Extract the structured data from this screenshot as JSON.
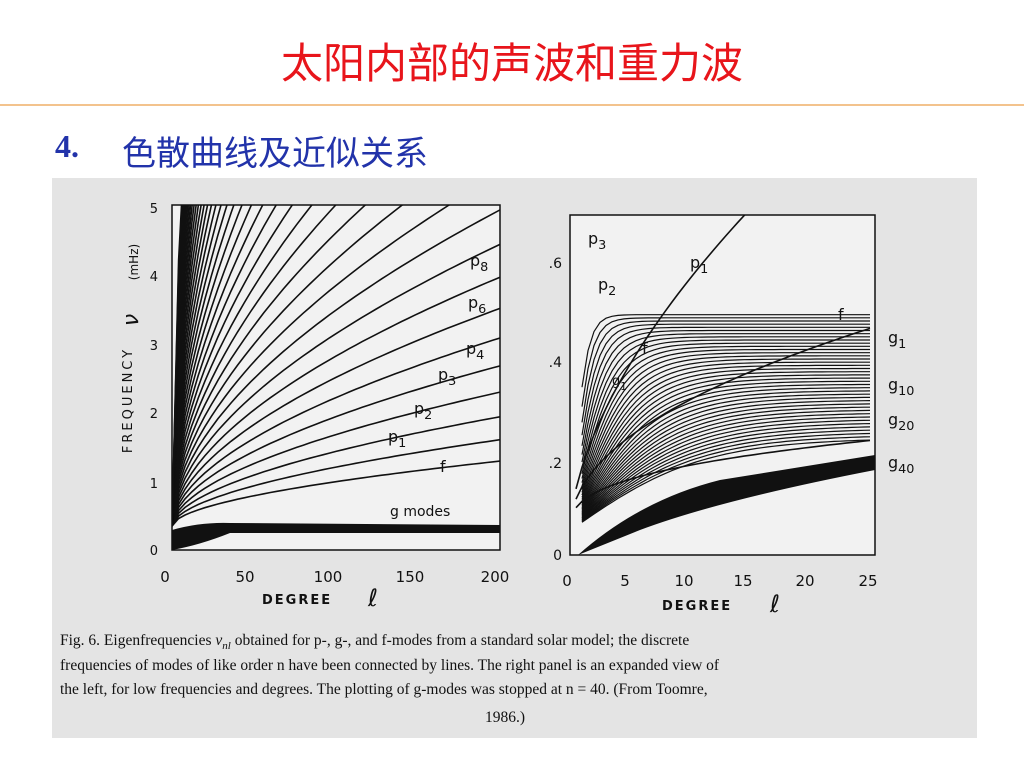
{
  "header": {
    "title": "太阳内部的声波和重力波"
  },
  "section": {
    "number": "4.",
    "title": "色散曲线及近似关系"
  },
  "figure": {
    "left_panel": {
      "y_axis": {
        "label": "FREQUENCY",
        "symbol": "ν",
        "unit": "(mHz)",
        "ticks": [
          "5",
          "4",
          "3",
          "2",
          "1",
          "0"
        ]
      },
      "x_axis": {
        "label": "DEGREE",
        "symbol": "ℓ",
        "ticks": [
          "0",
          "50",
          "100",
          "150",
          "200"
        ]
      },
      "curve_labels": [
        {
          "letter": "p",
          "sub": "8"
        },
        {
          "letter": "p",
          "sub": "6"
        },
        {
          "letter": "p",
          "sub": "4"
        },
        {
          "letter": "p",
          "sub": "3"
        },
        {
          "letter": "p",
          "sub": "2"
        },
        {
          "letter": "p",
          "sub": "1"
        },
        {
          "letter": "f"
        }
      ],
      "band_label": "g modes"
    },
    "right_panel": {
      "y_axis": {
        "ticks": [
          ".6",
          ".4",
          ".2",
          "0"
        ]
      },
      "x_axis": {
        "label": "DEGREE",
        "symbol": "ℓ",
        "ticks": [
          "0",
          "5",
          "10",
          "15",
          "20",
          "25"
        ]
      },
      "curve_labels": [
        {
          "letter": "p",
          "sub": "3"
        },
        {
          "letter": "p",
          "sub": "2"
        },
        {
          "letter": "p",
          "sub": "1"
        },
        {
          "letter": "f"
        },
        {
          "letter": "f"
        },
        {
          "letter": "g",
          "sub": "1"
        }
      ],
      "side_labels": [
        {
          "letter": "g",
          "sub": "1"
        },
        {
          "letter": "g",
          "sub": "10"
        },
        {
          "letter": "g",
          "sub": "20"
        },
        {
          "letter": "g",
          "sub": "40"
        }
      ]
    },
    "caption": {
      "lead": "Fig. 6.   Eigenfrequencies ",
      "symbol": "ν",
      "symbol_sub": "nl",
      "line1_rest": " obtained for p-, g-, and f-modes from a standard solar model; the discrete",
      "lines": [
        "frequencies of modes of like order n have been connected by lines. The right panel is an expanded view of",
        "the left, for low frequencies and degrees. The plotting of g-modes was stopped at n = 40. (From Toomre,",
        "1986.)"
      ]
    }
  }
}
